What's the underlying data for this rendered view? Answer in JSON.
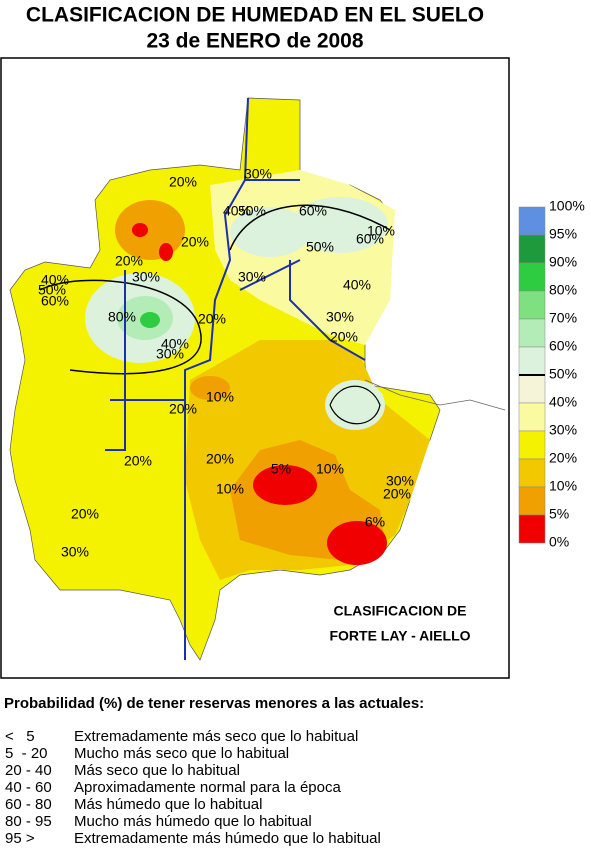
{
  "title": [
    "CLASIFICACION DE HUMEDAD EN EL SUELO",
    "23 de ENERO de 2008"
  ],
  "legend": {
    "labels": [
      "100%",
      "95%",
      "90%",
      "80%",
      "70%",
      "60%",
      "50%",
      "40%",
      "30%",
      "20%",
      "10%",
      "5%",
      "0%"
    ],
    "colors": [
      "#5f8fe0",
      "#1e9a3c",
      "#2ecc40",
      "#7ee07e",
      "#b4ecb8",
      "#dcf2dc",
      "#f6f4d8",
      "#fafaa0",
      "#f5f200",
      "#f2c800",
      "#f0a000",
      "#f00000"
    ]
  },
  "contour_labels": [
    "20%",
    "30%",
    "40%",
    "50%",
    "60%",
    "10%",
    "60%",
    "50%",
    "20%",
    "20%",
    "30%",
    "30%",
    "40%",
    "40%",
    "50%",
    "60%",
    "80%",
    "20%",
    "40%",
    "30%",
    "30%",
    "20%",
    "10%",
    "20%",
    "20%",
    "20%",
    "10%",
    "5%",
    "10%",
    "30%",
    "20%",
    "20%",
    "6%",
    "30%"
  ],
  "credit": [
    "CLASIFICACION DE",
    "FORTE LAY - AIELLO"
  ],
  "description": {
    "heading": "Probabilidad (%) de tener reservas menores a las actuales:",
    "rows": [
      [
        "<   5",
        "Extremadamente más seco que lo habitual"
      ],
      [
        "5  - 20",
        "Mucho más seco que lo habitual"
      ],
      [
        "20 - 40",
        "Más seco que lo habitual"
      ],
      [
        "40 - 60",
        "Aproximadamente normal para la época"
      ],
      [
        "60 - 80",
        "Más húmedo que lo habitual"
      ],
      [
        "80 - 95",
        "Mucho más húmedo que lo habitual"
      ],
      [
        "95 >",
        "Extremadamente más húmedo que lo habitual"
      ]
    ]
  }
}
